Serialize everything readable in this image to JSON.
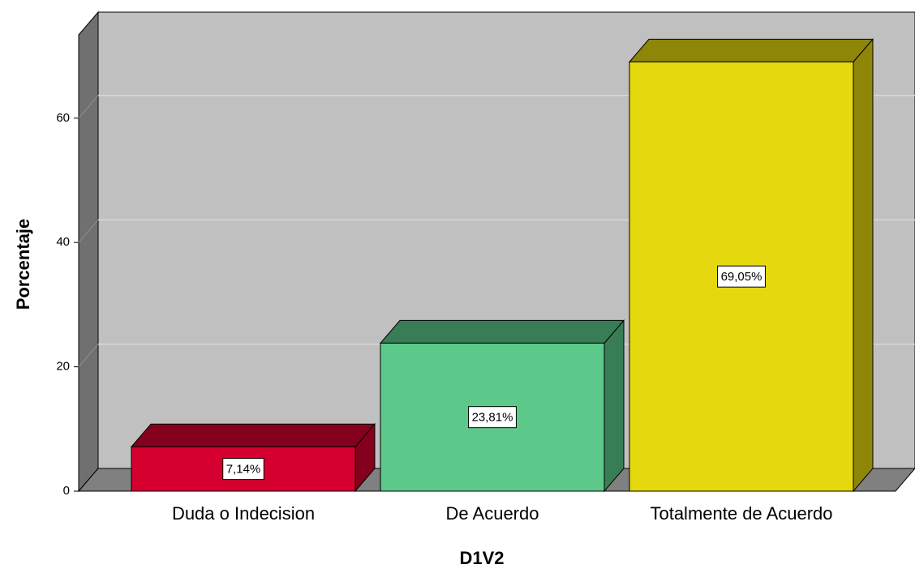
{
  "chart_data": {
    "type": "bar3d",
    "categories": [
      "Duda o Indecision",
      "De Acuerdo",
      "Totalmente de Acuerdo"
    ],
    "values": [
      7.14,
      23.81,
      69.05
    ],
    "value_labels": [
      "7,14%",
      "23,81%",
      "69,05%"
    ],
    "colors": [
      "#d5002f",
      "#5cc98a",
      "#e5d80f"
    ],
    "y_label": "Porcentaje",
    "x_label": "D1V2",
    "ylim": [
      0,
      73.4
    ],
    "yticks": [
      0,
      20,
      40,
      60
    ],
    "grid": true
  }
}
